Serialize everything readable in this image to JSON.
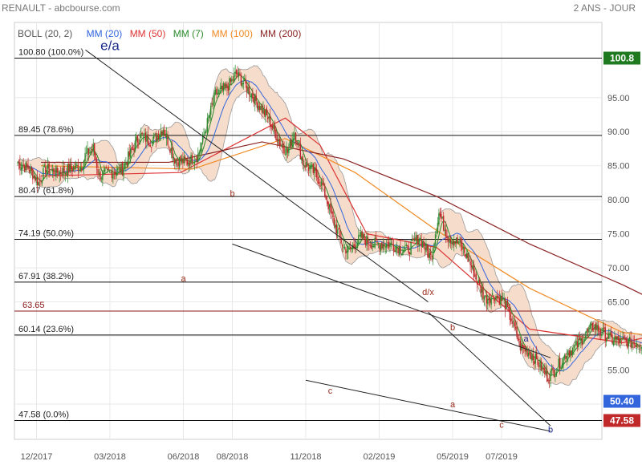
{
  "header": {
    "left": "RENAULT - abcbourse.com",
    "right": "2 ANS - JOUR"
  },
  "legend": [
    {
      "label": "BOLL (20, 2)",
      "color": "#555555"
    },
    {
      "label": "MM (20)",
      "color": "#3366dd"
    },
    {
      "label": "MM (50)",
      "color": "#dd3333"
    },
    {
      "label": "MM (7)",
      "color": "#2a8a2a"
    },
    {
      "label": "MM (100)",
      "color": "#f08a24"
    },
    {
      "label": "MM (200)",
      "color": "#8b2222"
    }
  ],
  "colors": {
    "up": "#2e8b2e",
    "down": "#c0282a",
    "bollinger_fill": "#f6dccb",
    "last_price_bg": "#c0282a",
    "high_price_bg": "#1f7a1f"
  },
  "chart_data": {
    "type": "candlestick",
    "title": "RENAULT",
    "period": "2 ANS - JOUR",
    "ylim": [
      45.5,
      102.5
    ],
    "x_tick_labels": [
      "12/2017",
      "03/2018",
      "06/2018",
      "08/2018",
      "11/2018",
      "02/2019",
      "05/2019",
      "07/2019"
    ],
    "y_tick_labels": [
      50.0,
      55.0,
      60.0,
      65.0,
      70.0,
      75.0,
      80.0,
      85.0,
      90.0,
      95.0
    ],
    "last_price": "50.40",
    "high_marker": "100.8",
    "low_marker": "47.58",
    "fibonacci_levels": [
      {
        "label": "100.80  (100.0%)",
        "value": 100.8
      },
      {
        "label": "89.45  (78.6%)",
        "value": 89.45
      },
      {
        "label": "80.47  (61.8%)",
        "value": 80.47
      },
      {
        "label": "74.19  (50.0%)",
        "value": 74.19
      },
      {
        "label": "67.91  (38.2%)",
        "value": 67.91
      },
      {
        "label": "63.65",
        "value": 63.65
      },
      {
        "label": "60.14  (23.6%)",
        "value": 60.14
      },
      {
        "label": "47.58  (0.0%)",
        "value": 47.58
      }
    ],
    "wave_labels": [
      {
        "label": "e/a",
        "date": "03/2018",
        "value": 102.0
      },
      {
        "label": "a",
        "date": "06/2018",
        "value": 68.0
      },
      {
        "label": "b",
        "date": "08/2018",
        "value": 80.5
      },
      {
        "label": "c",
        "date": "12/2018",
        "value": 51.5
      },
      {
        "label": "d/x",
        "date": "04/2019",
        "value": 66.0
      },
      {
        "label": "b",
        "date": "05/2019",
        "value": 60.8
      },
      {
        "label": "a",
        "date": "05/2019",
        "value": 49.5
      },
      {
        "label": "c",
        "date": "07/2019",
        "value": 46.5
      },
      {
        "label": "a",
        "date": "08/2019",
        "value": 59.2
      },
      {
        "label": "b",
        "date": "09/2019",
        "value": 45.8
      }
    ],
    "close_path": [
      [
        0,
        85.5
      ],
      [
        10,
        84.5
      ],
      [
        18,
        82.5
      ],
      [
        24,
        84.5
      ],
      [
        35,
        84.0
      ],
      [
        45,
        84.5
      ],
      [
        55,
        85.0
      ],
      [
        58,
        86.5
      ],
      [
        65,
        87.5
      ],
      [
        70,
        83.5
      ],
      [
        80,
        84.0
      ],
      [
        90,
        84.5
      ],
      [
        105,
        89.5
      ],
      [
        115,
        88.5
      ],
      [
        125,
        90.5
      ],
      [
        135,
        86.0
      ],
      [
        145,
        85.5
      ],
      [
        155,
        86.5
      ],
      [
        170,
        95.5
      ],
      [
        180,
        96.5
      ],
      [
        188,
        98.5
      ],
      [
        195,
        97.0
      ],
      [
        205,
        94.5
      ],
      [
        215,
        92.0
      ],
      [
        225,
        88.5
      ],
      [
        232,
        87.0
      ],
      [
        238,
        90.0
      ],
      [
        245,
        85.5
      ],
      [
        255,
        84.0
      ],
      [
        262,
        82.0
      ],
      [
        270,
        77.5
      ],
      [
        280,
        73.0
      ],
      [
        285,
        72.5
      ],
      [
        295,
        74.5
      ],
      [
        305,
        73.5
      ],
      [
        320,
        73.5
      ],
      [
        335,
        72.5
      ],
      [
        345,
        74.5
      ],
      [
        355,
        71.5
      ],
      [
        362,
        78.0
      ],
      [
        370,
        74.5
      ],
      [
        380,
        73.5
      ],
      [
        388,
        71.0
      ],
      [
        395,
        68.0
      ],
      [
        402,
        65.5
      ],
      [
        410,
        66.0
      ],
      [
        418,
        65.0
      ],
      [
        425,
        62.0
      ],
      [
        432,
        58.5
      ],
      [
        440,
        57.5
      ],
      [
        448,
        56.0
      ],
      [
        455,
        54.0
      ],
      [
        462,
        55.0
      ],
      [
        472,
        57.5
      ],
      [
        480,
        58.5
      ],
      [
        495,
        61.5
      ],
      [
        510,
        59.5
      ],
      [
        525,
        59.0
      ],
      [
        540,
        59.0
      ],
      [
        550,
        60.5
      ],
      [
        560,
        61.5
      ],
      [
        570,
        63.0
      ],
      [
        578,
        63.5
      ],
      [
        585,
        61.0
      ],
      [
        592,
        57.5
      ],
      [
        598,
        54.0
      ],
      [
        605,
        50.5
      ],
      [
        612,
        53.5
      ],
      [
        620,
        55.5
      ],
      [
        630,
        56.0
      ],
      [
        640,
        55.0
      ],
      [
        650,
        53.0
      ],
      [
        660,
        51.5
      ],
      [
        670,
        51.5
      ],
      [
        680,
        52.5
      ],
      [
        690,
        48.0
      ],
      [
        697,
        49.0
      ],
      [
        705,
        51.5
      ],
      [
        712,
        55.0
      ],
      [
        720,
        57.8
      ],
      [
        728,
        56.5
      ],
      [
        735,
        53.5
      ],
      [
        742,
        50.4
      ]
    ],
    "moving_averages": {
      "MM (50)": [
        [
          20,
          83.5
        ],
        [
          140,
          84.0
        ],
        [
          230,
          92.0
        ],
        [
          260,
          88.0
        ],
        [
          300,
          75.0
        ],
        [
          360,
          73.0
        ],
        [
          440,
          61.0
        ],
        [
          520,
          59.0
        ],
        [
          570,
          61.0
        ],
        [
          620,
          57.0
        ],
        [
          680,
          53.0
        ],
        [
          747,
          52.5
        ]
      ],
      "MM (100)": [
        [
          20,
          85.0
        ],
        [
          150,
          84.5
        ],
        [
          230,
          89.0
        ],
        [
          290,
          84.0
        ],
        [
          360,
          75.5
        ],
        [
          440,
          67.0
        ],
        [
          520,
          60.5
        ],
        [
          580,
          59.5
        ],
        [
          650,
          57.0
        ],
        [
          747,
          54.5
        ]
      ],
      "MM (200)": [
        [
          20,
          85.5
        ],
        [
          130,
          85.5
        ],
        [
          210,
          88.5
        ],
        [
          280,
          86.0
        ],
        [
          360,
          80.5
        ],
        [
          440,
          73.5
        ],
        [
          520,
          67.5
        ],
        [
          580,
          62.5
        ],
        [
          650,
          58.0
        ],
        [
          747,
          55.8
        ]
      ]
    },
    "trend_lines": [
      {
        "from": [
          "02/2018",
          102.0
        ],
        "to": [
          "04/2019",
          65.0
        ]
      },
      {
        "from": [
          "08/2018",
          73.5
        ],
        "to": [
          "09/2019",
          56.8
        ]
      },
      {
        "from": [
          "11/2018",
          53.5
        ],
        "to": [
          "09/2019",
          46.0
        ]
      },
      {
        "from": [
          "04/2019",
          63.5
        ],
        "to": [
          "09/2019",
          46.8
        ]
      }
    ]
  }
}
